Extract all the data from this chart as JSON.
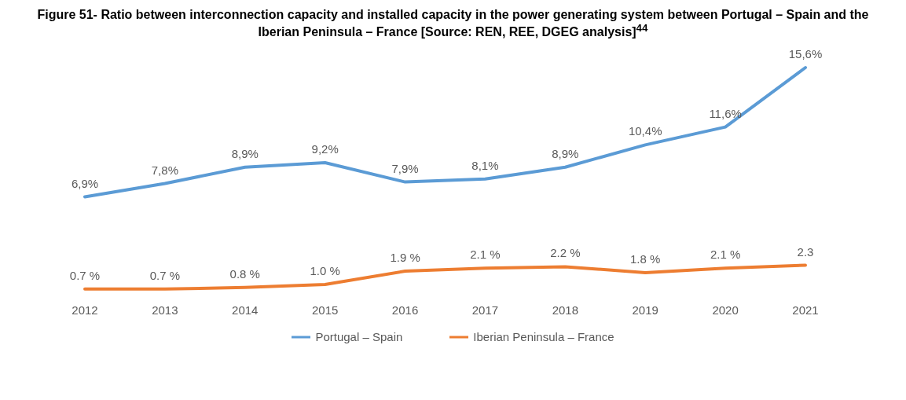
{
  "chart_data": {
    "type": "line",
    "title": "Figure 51- Ratio between interconnection capacity and installed capacity in the power generating system between Portugal – Spain and the Iberian Peninsula – France [Source: REN, REE, DGEG analysis]$^{44}$",
    "categories": [
      "2012",
      "2013",
      "2014",
      "2015",
      "2016",
      "2017",
      "2018",
      "2019",
      "2020",
      "2021"
    ],
    "series": [
      {
        "name": "Portugal – Spain",
        "color": "#5b9bd5",
        "values": [
          6.9,
          7.8,
          8.9,
          9.2,
          7.9,
          8.1,
          8.9,
          10.4,
          11.6,
          15.6
        ],
        "value_labels": [
          "6,9%",
          "7,8%",
          "8,9%",
          "9,2%",
          "7,9%",
          "8,1%",
          "8,9%",
          "10,4%",
          "11,6%",
          "15,6%"
        ]
      },
      {
        "name": "Iberian Peninsula – France",
        "color": "#ed7d31",
        "values": [
          0.7,
          0.7,
          0.8,
          1.0,
          1.9,
          2.1,
          2.2,
          1.8,
          2.1,
          2.3
        ],
        "value_labels": [
          "0.7 %",
          "0.7 %",
          "0.8 %",
          "1.0 %",
          "1.9 %",
          "2.1 %",
          "2.2 %",
          "1.8 %",
          "2.1 %",
          "2.3"
        ]
      }
    ],
    "marker": "none",
    "line_style": "solid",
    "legend": "bottom",
    "grid": false
  }
}
